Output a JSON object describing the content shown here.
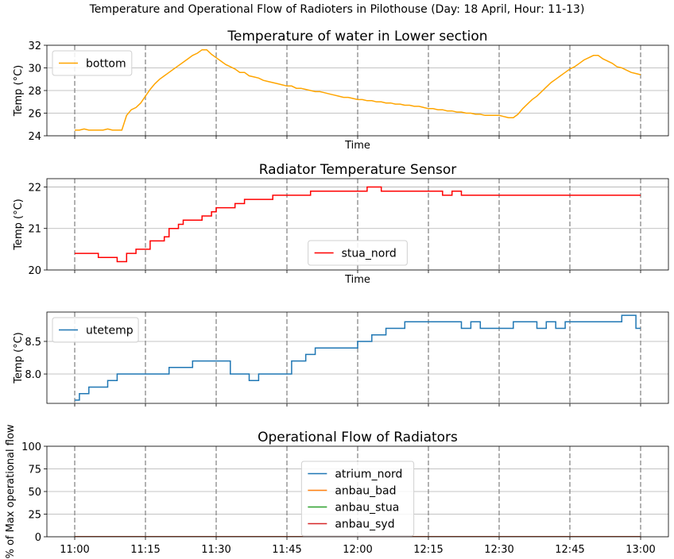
{
  "suptitle": "Temperature and Operational Flow of Radioters in Pilothouse (Day: 18 April, Hour: 11-13)",
  "chart_data": [
    {
      "type": "line",
      "title": "Temperature of water in Lower section",
      "xlabel": "Time",
      "ylabel": "Temp (°C)",
      "ylim": [
        24,
        32
      ],
      "yticks": [
        24,
        26,
        28,
        30,
        32
      ],
      "grid": "y",
      "legend": "upper-left",
      "series": [
        {
          "name": "bottom",
          "color": "#ffa500",
          "points": [
            [
              "11:00",
              24.5
            ],
            [
              "11:01",
              24.5
            ],
            [
              "11:02",
              24.6
            ],
            [
              "11:03",
              24.5
            ],
            [
              "11:05",
              24.5
            ],
            [
              "11:06",
              24.5
            ],
            [
              "11:07",
              24.6
            ],
            [
              "11:08",
              24.5
            ],
            [
              "11:10",
              24.5
            ],
            [
              "11:11",
              25.8
            ],
            [
              "11:12",
              26.3
            ],
            [
              "11:13",
              26.5
            ],
            [
              "11:14",
              26.9
            ],
            [
              "11:15",
              27.5
            ],
            [
              "11:16",
              28.1
            ],
            [
              "11:17",
              28.6
            ],
            [
              "11:18",
              29.0
            ],
            [
              "11:19",
              29.3
            ],
            [
              "11:20",
              29.6
            ],
            [
              "11:21",
              29.9
            ],
            [
              "11:22",
              30.2
            ],
            [
              "11:23",
              30.5
            ],
            [
              "11:24",
              30.8
            ],
            [
              "11:25",
              31.1
            ],
            [
              "11:26",
              31.3
            ],
            [
              "11:27",
              31.6
            ],
            [
              "11:28",
              31.6
            ],
            [
              "11:29",
              31.2
            ],
            [
              "11:30",
              30.9
            ],
            [
              "11:31",
              30.6
            ],
            [
              "11:32",
              30.3
            ],
            [
              "11:33",
              30.1
            ],
            [
              "11:34",
              29.9
            ],
            [
              "11:35",
              29.6
            ],
            [
              "11:36",
              29.6
            ],
            [
              "11:37",
              29.3
            ],
            [
              "11:38",
              29.2
            ],
            [
              "11:39",
              29.1
            ],
            [
              "11:40",
              28.9
            ],
            [
              "11:41",
              28.8
            ],
            [
              "11:42",
              28.7
            ],
            [
              "11:43",
              28.6
            ],
            [
              "11:44",
              28.5
            ],
            [
              "11:45",
              28.4
            ],
            [
              "11:46",
              28.4
            ],
            [
              "11:47",
              28.2
            ],
            [
              "11:48",
              28.2
            ],
            [
              "11:49",
              28.1
            ],
            [
              "11:50",
              28.0
            ],
            [
              "11:51",
              27.9
            ],
            [
              "11:52",
              27.9
            ],
            [
              "11:53",
              27.8
            ],
            [
              "11:54",
              27.7
            ],
            [
              "11:55",
              27.6
            ],
            [
              "11:56",
              27.5
            ],
            [
              "11:57",
              27.4
            ],
            [
              "11:58",
              27.4
            ],
            [
              "11:59",
              27.3
            ],
            [
              "12:00",
              27.2
            ],
            [
              "12:01",
              27.2
            ],
            [
              "12:02",
              27.1
            ],
            [
              "12:03",
              27.1
            ],
            [
              "12:04",
              27.0
            ],
            [
              "12:05",
              27.0
            ],
            [
              "12:06",
              26.9
            ],
            [
              "12:07",
              26.9
            ],
            [
              "12:08",
              26.8
            ],
            [
              "12:09",
              26.8
            ],
            [
              "12:10",
              26.7
            ],
            [
              "12:11",
              26.7
            ],
            [
              "12:12",
              26.6
            ],
            [
              "12:13",
              26.6
            ],
            [
              "12:14",
              26.5
            ],
            [
              "12:15",
              26.4
            ],
            [
              "12:16",
              26.4
            ],
            [
              "12:17",
              26.3
            ],
            [
              "12:18",
              26.3
            ],
            [
              "12:19",
              26.2
            ],
            [
              "12:20",
              26.2
            ],
            [
              "12:21",
              26.1
            ],
            [
              "12:22",
              26.1
            ],
            [
              "12:23",
              26.0
            ],
            [
              "12:24",
              26.0
            ],
            [
              "12:25",
              25.9
            ],
            [
              "12:26",
              25.9
            ],
            [
              "12:27",
              25.8
            ],
            [
              "12:28",
              25.8
            ],
            [
              "12:29",
              25.8
            ],
            [
              "12:30",
              25.8
            ],
            [
              "12:31",
              25.7
            ],
            [
              "12:32",
              25.6
            ],
            [
              "12:33",
              25.6
            ],
            [
              "12:34",
              25.9
            ],
            [
              "12:35",
              26.4
            ],
            [
              "12:36",
              26.8
            ],
            [
              "12:37",
              27.2
            ],
            [
              "12:38",
              27.5
            ],
            [
              "12:39",
              27.9
            ],
            [
              "12:40",
              28.3
            ],
            [
              "12:41",
              28.7
            ],
            [
              "12:42",
              29.0
            ],
            [
              "12:43",
              29.3
            ],
            [
              "12:44",
              29.6
            ],
            [
              "12:45",
              29.9
            ],
            [
              "12:46",
              30.1
            ],
            [
              "12:47",
              30.4
            ],
            [
              "12:48",
              30.7
            ],
            [
              "12:49",
              30.9
            ],
            [
              "12:50",
              31.1
            ],
            [
              "12:51",
              31.1
            ],
            [
              "12:52",
              30.8
            ],
            [
              "12:53",
              30.6
            ],
            [
              "12:54",
              30.4
            ],
            [
              "12:55",
              30.1
            ],
            [
              "12:56",
              30.0
            ],
            [
              "12:57",
              29.8
            ],
            [
              "12:58",
              29.6
            ],
            [
              "12:59",
              29.5
            ],
            [
              "13:00",
              29.4
            ]
          ]
        }
      ]
    },
    {
      "type": "line",
      "title": "Radiator Temperature Sensor",
      "xlabel": "Time",
      "ylabel": "Temp (°C)",
      "ylim": [
        20,
        22.2
      ],
      "yticks": [
        20,
        21,
        22
      ],
      "grid": "y",
      "legend": "lower-center",
      "series": [
        {
          "name": "stua_nord",
          "color": "#ff0000",
          "step": true,
          "points": [
            [
              "11:00",
              20.4
            ],
            [
              "11:05",
              20.3
            ],
            [
              "11:09",
              20.2
            ],
            [
              "11:11",
              20.4
            ],
            [
              "11:12",
              20.4
            ],
            [
              "11:13",
              20.5
            ],
            [
              "11:15",
              20.5
            ],
            [
              "11:16",
              20.7
            ],
            [
              "11:18",
              20.7
            ],
            [
              "11:19",
              20.8
            ],
            [
              "11:20",
              21.0
            ],
            [
              "11:22",
              21.1
            ],
            [
              "11:23",
              21.2
            ],
            [
              "11:27",
              21.3
            ],
            [
              "11:29",
              21.4
            ],
            [
              "11:30",
              21.5
            ],
            [
              "11:34",
              21.6
            ],
            [
              "11:36",
              21.7
            ],
            [
              "11:42",
              21.8
            ],
            [
              "11:50",
              21.9
            ],
            [
              "12:02",
              22.0
            ],
            [
              "12:05",
              21.9
            ],
            [
              "12:18",
              21.8
            ],
            [
              "12:20",
              21.9
            ],
            [
              "12:22",
              21.8
            ],
            [
              "13:00",
              21.8
            ]
          ]
        }
      ]
    },
    {
      "type": "line",
      "title": "",
      "xlabel": "",
      "ylabel": "Temp (°C)",
      "ylim": [
        7.55,
        8.95
      ],
      "yticks": [
        8.0,
        8.5
      ],
      "ytick_labels": [
        "8.0",
        "8.5"
      ],
      "grid": "y",
      "legend": "upper-left",
      "series": [
        {
          "name": "utetemp",
          "color": "#1f77b4",
          "step": true,
          "points": [
            [
              "11:00",
              7.6
            ],
            [
              "11:01",
              7.7
            ],
            [
              "11:03",
              7.8
            ],
            [
              "11:07",
              7.9
            ],
            [
              "11:09",
              8.0
            ],
            [
              "11:20",
              8.1
            ],
            [
              "11:25",
              8.2
            ],
            [
              "11:33",
              8.0
            ],
            [
              "11:37",
              7.9
            ],
            [
              "11:39",
              8.0
            ],
            [
              "11:46",
              8.2
            ],
            [
              "11:49",
              8.3
            ],
            [
              "11:51",
              8.4
            ],
            [
              "12:00",
              8.5
            ],
            [
              "12:03",
              8.6
            ],
            [
              "12:06",
              8.7
            ],
            [
              "12:10",
              8.8
            ],
            [
              "12:22",
              8.7
            ],
            [
              "12:24",
              8.8
            ],
            [
              "12:26",
              8.7
            ],
            [
              "12:33",
              8.8
            ],
            [
              "12:38",
              8.7
            ],
            [
              "12:40",
              8.8
            ],
            [
              "12:42",
              8.7
            ],
            [
              "12:44",
              8.8
            ],
            [
              "12:56",
              8.9
            ],
            [
              "12:59",
              8.7
            ],
            [
              "13:00",
              8.7
            ]
          ]
        }
      ]
    },
    {
      "type": "line",
      "title": "Operational Flow of Radiators",
      "xlabel": "",
      "ylabel": "% of Max operational flow",
      "ylim": [
        0,
        100
      ],
      "yticks": [
        0,
        25,
        50,
        75,
        100
      ],
      "grid": "y",
      "legend": "center",
      "x_ticks": [
        "11:00",
        "11:15",
        "11:30",
        "11:45",
        "12:00",
        "12:15",
        "12:30",
        "12:45",
        "13:00"
      ],
      "series": [
        {
          "name": "atrium_nord",
          "color": "#1f77b4",
          "points": [
            [
              "11:00",
              0
            ],
            [
              "13:00",
              0
            ]
          ]
        },
        {
          "name": "anbau_bad",
          "color": "#ff7f0e",
          "points": [
            [
              "11:00",
              0
            ],
            [
              "13:00",
              0
            ]
          ]
        },
        {
          "name": "anbau_stua",
          "color": "#2ca02c",
          "points": [
            [
              "11:00",
              0
            ],
            [
              "13:00",
              0
            ]
          ]
        },
        {
          "name": "anbau_syd",
          "color": "#d62728",
          "points": [
            [
              "11:00",
              0
            ],
            [
              "13:00",
              0
            ]
          ]
        }
      ]
    }
  ]
}
